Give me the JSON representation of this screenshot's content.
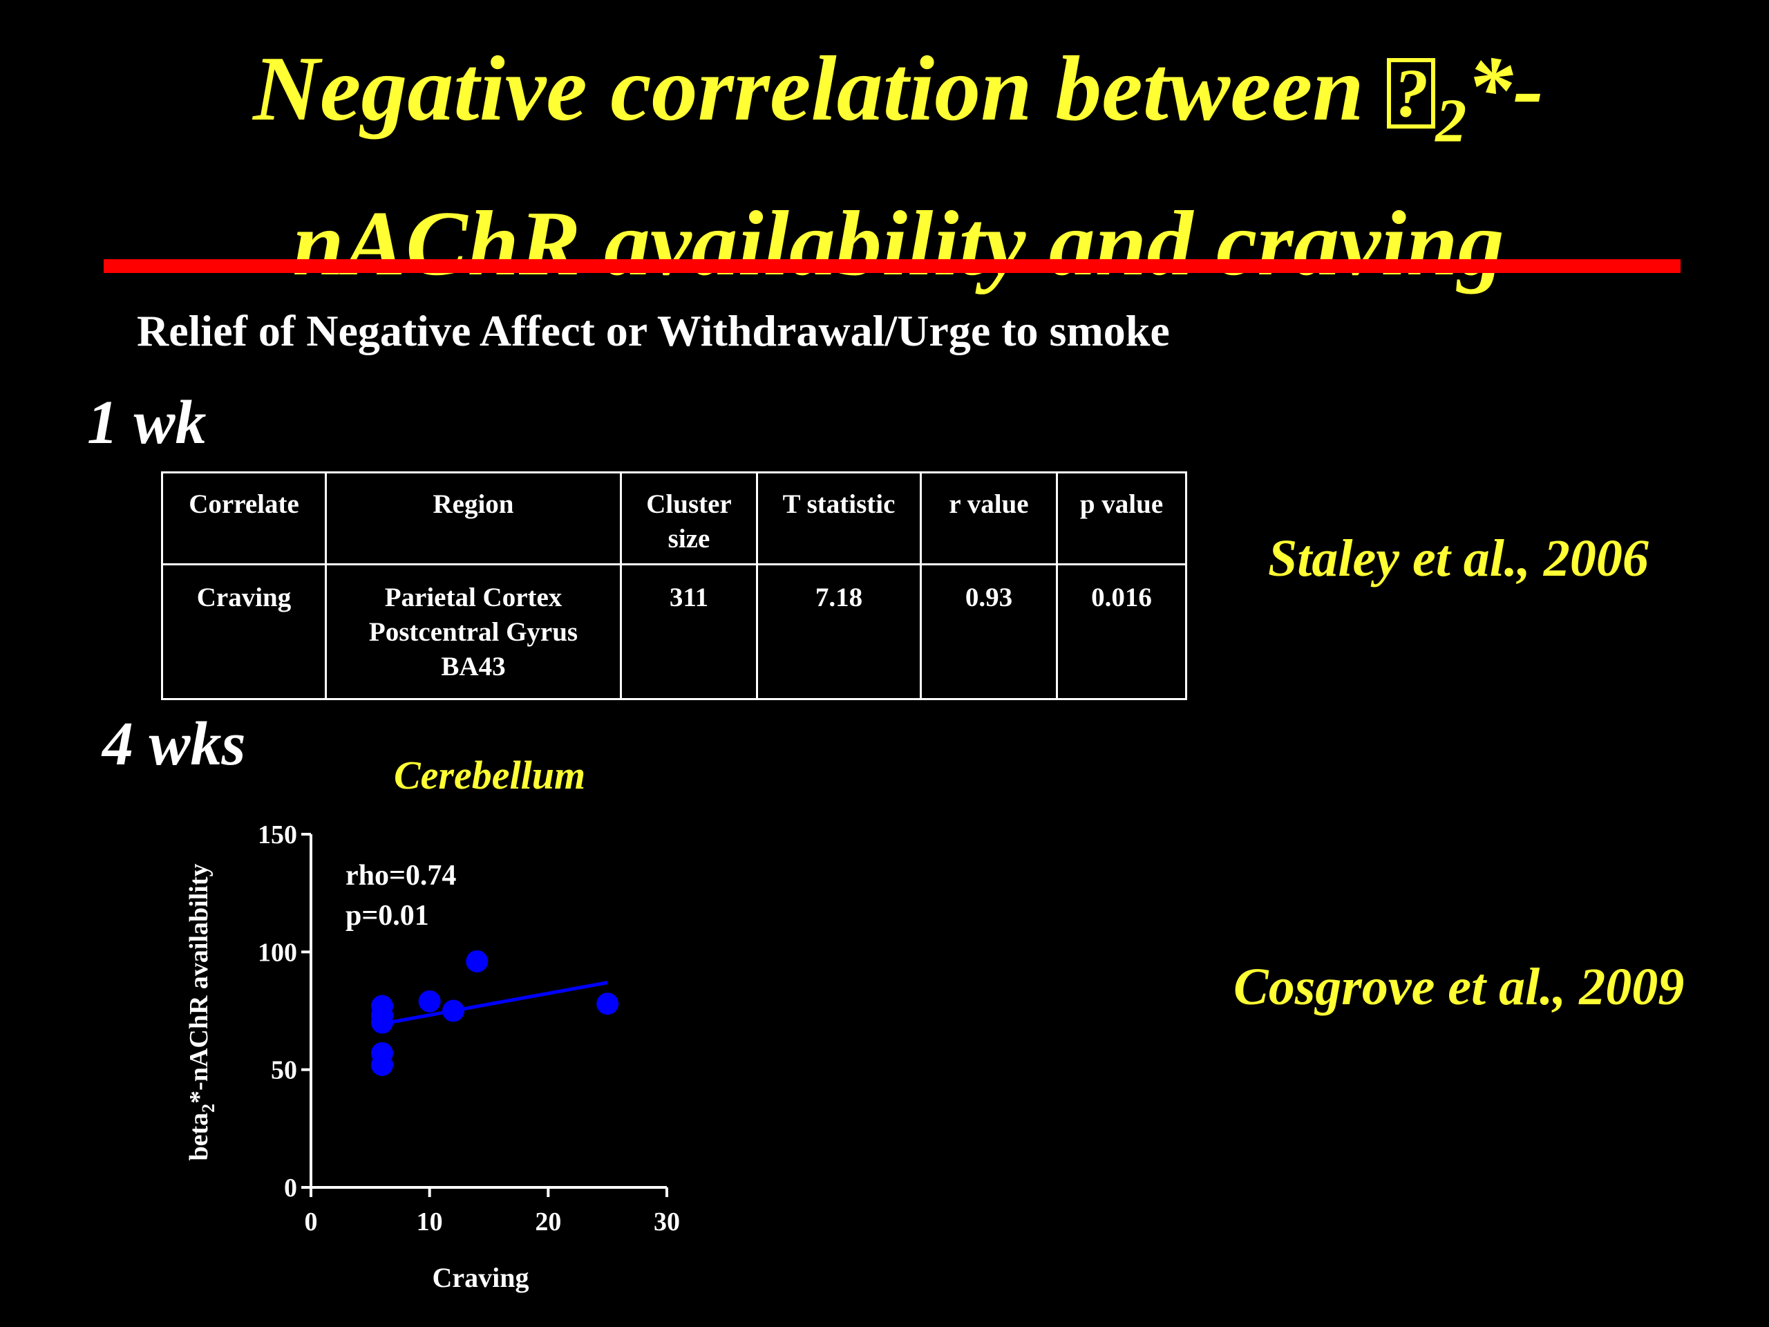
{
  "slide": {
    "title_line1_prefix": "Negative correlation between ",
    "title_missing_glyph": "?",
    "title_subscript": "2",
    "title_line1_suffix": "*-",
    "title_line2": "nAChR availability and craving",
    "subtitle": "Relief of Negative Affect or Withdrawal/Urge to smoke",
    "period_1": "1 wk",
    "period_2": "4 wks",
    "citation_1": "Staley et al., 2006",
    "citation_2": "Cosgrove et al., 2009",
    "colors": {
      "background": "#000000",
      "title": "#ffff33",
      "rule": "#ff0000",
      "points": "#0000ff",
      "text": "#ffffff"
    }
  },
  "table": {
    "headers": [
      "Correlate",
      "Region",
      "Cluster size",
      "T statistic",
      "r value",
      "p value"
    ],
    "row": {
      "correlate": "Craving",
      "region_1": "Parietal Cortex",
      "region_2": "Postcentral Gyrus",
      "region_3": "BA43",
      "cluster_size": "311",
      "t_statistic": "7.18",
      "r_value": "0.93",
      "p_value": "0.016"
    }
  },
  "chart_data": {
    "type": "scatter",
    "title": "Cerebellum",
    "xlabel": "Craving",
    "ylabel_prefix": "beta",
    "ylabel_subscript": "2",
    "ylabel_suffix": "*-nAChR availability",
    "xlim": [
      0,
      30
    ],
    "ylim": [
      0,
      150
    ],
    "x_ticks": [
      0,
      10,
      20,
      30
    ],
    "y_ticks": [
      0,
      50,
      100,
      150
    ],
    "annotations": [
      "rho=0.74",
      "p=0.01"
    ],
    "grid": false,
    "points": [
      {
        "x": 6,
        "y": 77
      },
      {
        "x": 6,
        "y": 73
      },
      {
        "x": 6,
        "y": 70
      },
      {
        "x": 6,
        "y": 57
      },
      {
        "x": 6,
        "y": 52
      },
      {
        "x": 10,
        "y": 79
      },
      {
        "x": 12,
        "y": 75
      },
      {
        "x": 14,
        "y": 96
      },
      {
        "x": 25,
        "y": 78
      }
    ],
    "regression_line": [
      {
        "x": 6,
        "y": 69.5
      },
      {
        "x": 25,
        "y": 87
      }
    ]
  }
}
